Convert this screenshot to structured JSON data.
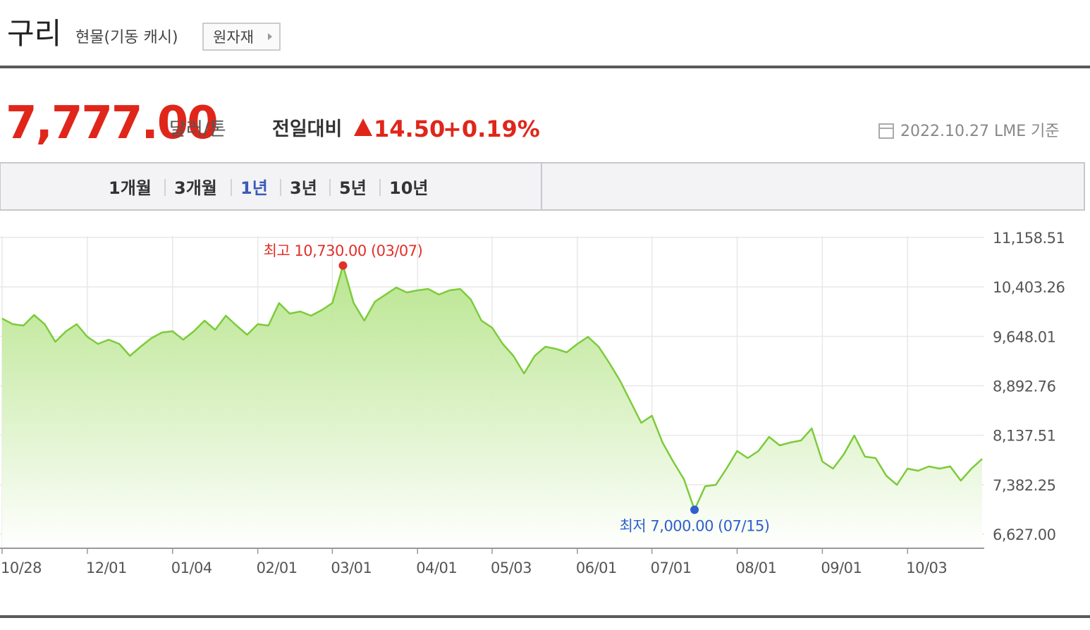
{
  "header": {
    "title": "구리",
    "subtitle": "현물(기동 캐시)",
    "button": "원자재"
  },
  "quote": {
    "price": "7,777.00",
    "unit": "달러/톤",
    "change_label": "전일대비",
    "change": "14.50",
    "change_pct": "+0.19%",
    "date": "2022.10.27 LME 기준"
  },
  "tabs": [
    {
      "label": "1개월",
      "selected": false
    },
    {
      "label": "3개월",
      "selected": false
    },
    {
      "label": "1년",
      "selected": true
    },
    {
      "label": "3년",
      "selected": false
    },
    {
      "label": "5년",
      "selected": false
    },
    {
      "label": "10년",
      "selected": false
    }
  ],
  "chart_data": {
    "type": "line",
    "color": "#7ccb3a",
    "fill_color": "#b6e48a",
    "grid": true,
    "high_label": "최고 10,730.00 (03/07)",
    "high_color": "#e0302a",
    "low_label": "최저 7,000.00 (07/15)",
    "low_color": "#2f5fcf",
    "categories": [
      "10/28",
      null,
      null,
      null,
      null,
      null,
      null,
      null,
      "12/01",
      null,
      null,
      null,
      null,
      null,
      null,
      null,
      "01/04",
      null,
      null,
      null,
      null,
      null,
      null,
      null,
      "02/01",
      null,
      null,
      null,
      null,
      null,
      null,
      "03/01",
      null,
      null,
      null,
      null,
      null,
      null,
      null,
      "04/01",
      null,
      null,
      null,
      null,
      null,
      null,
      "05/03",
      null,
      null,
      null,
      null,
      null,
      null,
      null,
      "06/01",
      null,
      null,
      null,
      null,
      null,
      null,
      "07/01",
      null,
      null,
      null,
      null,
      null,
      null,
      null,
      "08/01",
      null,
      null,
      null,
      null,
      null,
      null,
      null,
      "09/01",
      null,
      null,
      null,
      null,
      null,
      null,
      null,
      "10/03",
      null,
      null,
      null,
      null,
      null,
      null,
      null
    ],
    "values": [
      9921,
      9835,
      9813,
      9975,
      9835,
      9566,
      9727,
      9835,
      9641,
      9533,
      9598,
      9533,
      9350,
      9490,
      9619,
      9706,
      9727,
      9598,
      9727,
      9888,
      9749,
      9964,
      9813,
      9673,
      9835,
      9813,
      10157,
      9996,
      10028,
      9964,
      10050,
      10157,
      10730,
      10157,
      9888,
      10179,
      10287,
      10394,
      10319,
      10351,
      10373,
      10287,
      10351,
      10373,
      10211,
      9888,
      9781,
      9533,
      9350,
      9081,
      9350,
      9490,
      9457,
      9404,
      9533,
      9641,
      9490,
      9243,
      8973,
      8651,
      8328,
      8436,
      8027,
      7736,
      7467,
      7000,
      7359,
      7380,
      7628,
      7897,
      7790,
      7897,
      8112,
      7983,
      8027,
      8059,
      8242,
      7736,
      7628,
      7843,
      8134,
      7811,
      7790,
      7520,
      7380,
      7628,
      7596,
      7661,
      7628,
      7661,
      7445,
      7628,
      7777
    ],
    "ylim": [
      6627.0,
      11158.51
    ],
    "yticks": [
      {
        "value": 6627.0,
        "label": "6,627.00"
      },
      {
        "value": 7382.25,
        "label": "7,382.25"
      },
      {
        "value": 8137.51,
        "label": "8,137.51"
      },
      {
        "value": 8892.76,
        "label": "8,892.76"
      },
      {
        "value": 9648.01,
        "label": "9,648.01"
      },
      {
        "value": 10403.26,
        "label": "10,403.26"
      },
      {
        "value": 11158.51,
        "label": "11,158.51"
      }
    ]
  }
}
